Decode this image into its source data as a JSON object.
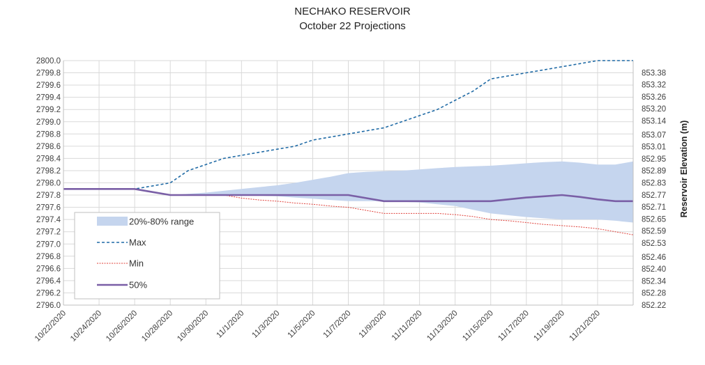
{
  "chart_data": {
    "type": "line",
    "title": "NECHAKO RESERVOIR",
    "subtitle": "October 22 Projections",
    "ylabel": "",
    "y2label": "Reservoir Elevation (m)",
    "ylim": [
      2796.0,
      2800.0
    ],
    "y2lim": [
      852.22,
      853.44
    ],
    "grid": true,
    "legend_position": "bottom-left",
    "x": [
      "10/22/2020",
      "10/23/2020",
      "10/24/2020",
      "10/25/2020",
      "10/26/2020",
      "10/27/2020",
      "10/28/2020",
      "10/29/2020",
      "10/30/2020",
      "10/31/2020",
      "11/1/2020",
      "11/2/2020",
      "11/3/2020",
      "11/4/2020",
      "11/5/2020",
      "11/6/2020",
      "11/7/2020",
      "11/8/2020",
      "11/9/2020",
      "11/10/2020",
      "11/11/2020",
      "11/12/2020",
      "11/13/2020",
      "11/14/2020",
      "11/15/2020",
      "11/16/2020",
      "11/17/2020",
      "11/18/2020",
      "11/19/2020",
      "11/20/2020",
      "11/21/2020",
      "11/22/2020",
      "11/23/2020"
    ],
    "x_tick_labels": [
      "10/22/2020",
      "10/24/2020",
      "10/26/2020",
      "10/28/2020",
      "10/30/2020",
      "11/1/2020",
      "11/3/2020",
      "11/5/2020",
      "11/7/2020",
      "11/9/2020",
      "11/11/2020",
      "11/13/2020",
      "11/15/2020",
      "11/17/2020",
      "11/19/2020",
      "11/21/2020"
    ],
    "y_tick_labels": [
      "2800.0",
      "2799.8",
      "2799.6",
      "2799.4",
      "2799.2",
      "2799.0",
      "2798.8",
      "2798.6",
      "2798.4",
      "2798.2",
      "2798.0",
      "2797.8",
      "2797.6",
      "2797.4",
      "2797.2",
      "2797.0",
      "2796.8",
      "2796.6",
      "2796.4",
      "2796.2",
      "2796.0"
    ],
    "y2_tick_labels": [
      "853.38",
      "853.32",
      "853.26",
      "853.20",
      "853.14",
      "853.07",
      "853.01",
      "852.95",
      "852.89",
      "852.83",
      "852.77",
      "852.71",
      "852.65",
      "852.59",
      "852.53",
      "852.46",
      "852.40",
      "852.34",
      "852.28",
      "852.22"
    ],
    "y2_tick_values": [
      853.38,
      853.32,
      853.26,
      853.2,
      853.14,
      853.07,
      853.01,
      852.95,
      852.89,
      852.83,
      852.77,
      852.71,
      852.65,
      852.59,
      852.53,
      852.46,
      852.4,
      852.34,
      852.28,
      852.22
    ],
    "series": [
      {
        "name": "20%-80% range",
        "kind": "band",
        "color": "#c5d5ee",
        "low": [
          2797.9,
          2797.9,
          2797.9,
          2797.9,
          2797.9,
          2797.9,
          2797.8,
          2797.8,
          2797.8,
          2797.8,
          2797.8,
          2797.79,
          2797.78,
          2797.76,
          2797.74,
          2797.72,
          2797.7,
          2797.7,
          2797.7,
          2797.69,
          2797.68,
          2797.65,
          2797.62,
          2797.56,
          2797.5,
          2797.47,
          2797.44,
          2797.42,
          2797.4,
          2797.4,
          2797.4,
          2797.38,
          2797.35
        ],
        "high": [
          2797.9,
          2797.9,
          2797.9,
          2797.9,
          2797.9,
          2797.9,
          2797.8,
          2797.82,
          2797.84,
          2797.87,
          2797.9,
          2797.93,
          2797.96,
          2798.0,
          2798.05,
          2798.1,
          2798.16,
          2798.18,
          2798.19,
          2798.2,
          2798.22,
          2798.24,
          2798.26,
          2798.27,
          2798.28,
          2798.3,
          2798.32,
          2798.34,
          2798.35,
          2798.33,
          2798.3,
          2798.3,
          2798.35
        ]
      },
      {
        "name": "Max",
        "kind": "dashed",
        "color": "#1f6aa5",
        "values": [
          2797.9,
          2797.9,
          2797.9,
          2797.9,
          2797.9,
          2797.95,
          2798.0,
          2798.2,
          2798.3,
          2798.4,
          2798.45,
          2798.5,
          2798.55,
          2798.6,
          2798.7,
          2798.75,
          2798.8,
          2798.85,
          2798.9,
          2799.0,
          2799.1,
          2799.2,
          2799.35,
          2799.5,
          2799.7,
          2799.75,
          2799.8,
          2799.85,
          2799.9,
          2799.95,
          2800.0,
          2800.0,
          2800.0
        ]
      },
      {
        "name": "Min",
        "kind": "dotted",
        "color": "#e0413a",
        "values": [
          2797.9,
          2797.9,
          2797.9,
          2797.9,
          2797.9,
          2797.85,
          2797.8,
          2797.8,
          2797.8,
          2797.8,
          2797.75,
          2797.72,
          2797.7,
          2797.67,
          2797.65,
          2797.62,
          2797.6,
          2797.55,
          2797.5,
          2797.5,
          2797.5,
          2797.5,
          2797.48,
          2797.45,
          2797.4,
          2797.38,
          2797.35,
          2797.32,
          2797.3,
          2797.28,
          2797.25,
          2797.2,
          2797.15
        ]
      },
      {
        "name": "50%",
        "kind": "solid",
        "color": "#7a5fa6",
        "values": [
          2797.9,
          2797.9,
          2797.9,
          2797.9,
          2797.9,
          2797.85,
          2797.8,
          2797.8,
          2797.8,
          2797.8,
          2797.8,
          2797.8,
          2797.8,
          2797.8,
          2797.8,
          2797.8,
          2797.8,
          2797.75,
          2797.7,
          2797.7,
          2797.7,
          2797.7,
          2797.7,
          2797.7,
          2797.7,
          2797.73,
          2797.76,
          2797.78,
          2797.8,
          2797.77,
          2797.73,
          2797.7,
          2797.7
        ]
      }
    ]
  }
}
